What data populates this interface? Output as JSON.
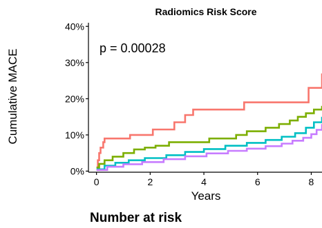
{
  "chart_data": {
    "type": "line",
    "title": "Radiomics Risk Score",
    "xlabel": "Years",
    "ylabel": "Cumulative MACE",
    "annotation": "p = 0.00028",
    "xlim": [
      -0.3,
      8.4
    ],
    "ylim": [
      -0.3,
      41
    ],
    "xticks": [
      0,
      2,
      4,
      6,
      8
    ],
    "xtick_labels": [
      "0",
      "2",
      "4",
      "6",
      "8"
    ],
    "yticks": [
      0,
      10,
      20,
      30,
      40
    ],
    "ytick_labels": [
      "0%",
      "10%",
      "20%",
      "30%",
      "40%"
    ],
    "grid": false,
    "series": [
      {
        "color": "#F8766D",
        "x": [
          0,
          0.05,
          0.1,
          0.15,
          0.25,
          0.3,
          1.25,
          2.1,
          2.9,
          3.3,
          3.6,
          4.2,
          5.5,
          7.7,
          7.9,
          8.4
        ],
        "y": [
          1,
          3,
          5,
          6.5,
          8,
          9,
          10,
          11.5,
          13.5,
          15.5,
          17,
          17,
          19,
          19,
          23,
          27
        ]
      },
      {
        "color": "#7CAE00",
        "x": [
          0,
          0.1,
          0.3,
          0.6,
          1.0,
          1.4,
          1.8,
          2.2,
          2.7,
          4.2,
          5.2,
          5.6,
          6.3,
          6.8,
          7.2,
          7.5,
          7.8,
          8.1,
          8.4
        ],
        "y": [
          1,
          2,
          3,
          4,
          5,
          6,
          6.5,
          7,
          8,
          9,
          10,
          11,
          12,
          13,
          14,
          15,
          16,
          17,
          18
        ]
      },
      {
        "color": "#00BFC4",
        "x": [
          0,
          0.3,
          0.7,
          1.2,
          1.8,
          2.6,
          3.3,
          4.0,
          4.8,
          5.6,
          6.3,
          6.9,
          7.4,
          7.8,
          8.1,
          8.4
        ],
        "y": [
          0.5,
          1.5,
          2.3,
          3,
          3.6,
          4.4,
          5.3,
          6.1,
          7,
          7.8,
          8.6,
          9.5,
          10.5,
          12,
          13.5,
          15
        ]
      },
      {
        "color": "#C77CFF",
        "x": [
          0,
          0.4,
          1.0,
          1.7,
          2.5,
          3.3,
          4.1,
          4.9,
          5.6,
          6.3,
          6.9,
          7.3,
          7.7,
          8.0,
          8.2,
          8.4
        ],
        "y": [
          0.3,
          1.2,
          1.9,
          2.5,
          3.3,
          4.1,
          4.9,
          5.6,
          6.2,
          6.9,
          7.6,
          8.4,
          9.2,
          10.2,
          11.4,
          13
        ]
      }
    ]
  },
  "risk_table": {
    "title": "Number at risk"
  }
}
